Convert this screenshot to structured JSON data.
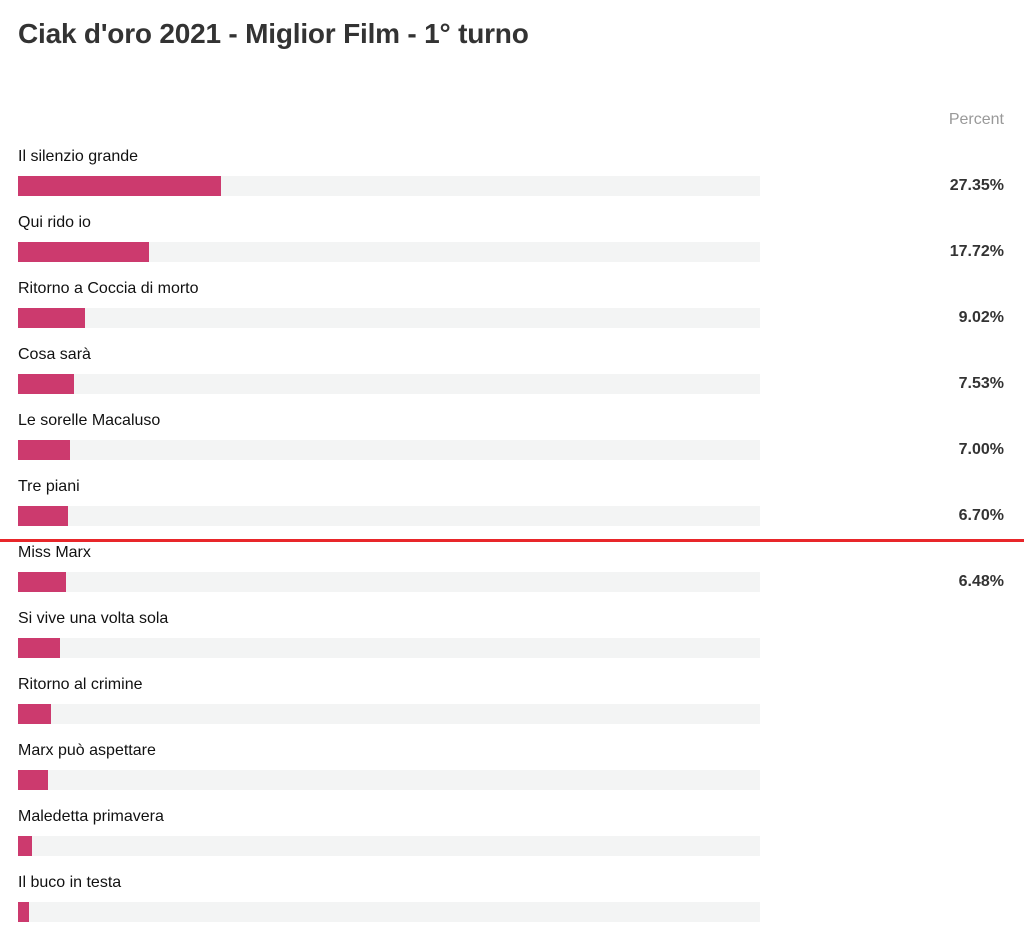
{
  "chart_data": {
    "type": "bar",
    "orientation": "horizontal",
    "title": "Ciak d'oro 2021 - Miglior Film - 1° turno",
    "value_header": "Percent",
    "xlim": [
      0,
      100
    ],
    "cutoff_after_index": 5,
    "color": "#cc3a6e",
    "categories": [
      "Il silenzio grande",
      "Qui rido io",
      "Ritorno a Coccia di morto",
      "Cosa sarà",
      "Le sorelle Macaluso",
      "Tre piani",
      "Miss Marx",
      "Si vive una volta sola",
      "Ritorno al crimine",
      "Marx può aspettare",
      "Maledetta primavera",
      "Il buco in testa"
    ],
    "values": [
      27.35,
      17.72,
      9.02,
      7.53,
      7.0,
      6.7,
      6.48,
      5.7,
      4.5,
      4.0,
      1.9,
      1.5
    ],
    "labels": [
      "27.35%",
      "17.72%",
      "9.02%",
      "7.53%",
      "7.00%",
      "6.70%",
      "6.48%",
      "",
      "",
      "",
      "",
      ""
    ]
  }
}
